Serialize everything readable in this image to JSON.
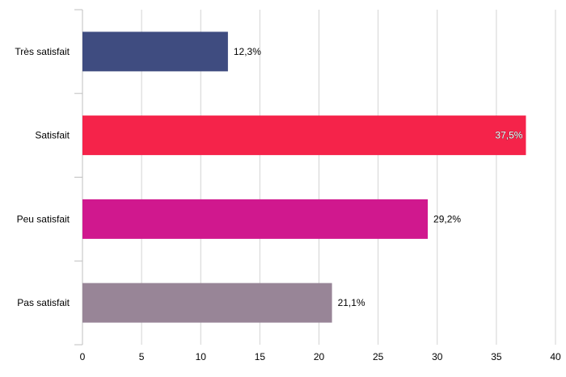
{
  "chart_data": {
    "type": "bar",
    "orientation": "horizontal",
    "categories": [
      "Très satisfait",
      "Satisfait",
      "Peu satisfait",
      "Pas satisfait"
    ],
    "values": [
      12.3,
      37.5,
      29.2,
      21.1
    ],
    "data_labels": [
      "12,3%",
      "37,5%",
      "29,2%",
      "21,1%"
    ],
    "colors": [
      "#3f4c80",
      "#f5234a",
      "#d0188e",
      "#988597"
    ],
    "xlim": [
      0,
      40
    ],
    "x_ticks": [
      0,
      5,
      10,
      15,
      20,
      25,
      30,
      35,
      40
    ],
    "grid": true,
    "title": "",
    "xlabel": "",
    "ylabel": ""
  }
}
